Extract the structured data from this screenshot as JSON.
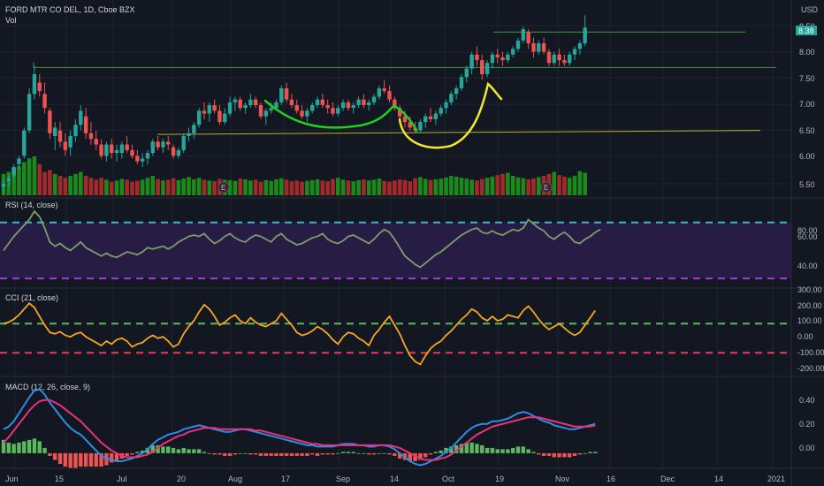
{
  "header": {
    "symbol": "FORD MTR CO DEL, 1D, Cboe BZX",
    "volume_label": "Vol",
    "currency": "USD"
  },
  "colors": {
    "background": "#131722",
    "grid": "#1f2330",
    "separator": "#2a2e39",
    "up": "#26a69a",
    "down": "#ef5350",
    "vol_up": "#1b8a1b",
    "vol_down": "#a32a2a",
    "rsi_line": "#7e9c6b",
    "rsi_band": "#2b1d4a",
    "rsi_upper": "#3bb8d8",
    "rsi_lower": "#a23bd8",
    "cci_line": "#f5a623",
    "cci_upper": "#5cb85c",
    "cci_lower": "#e83e5a",
    "macd_line": "#2e8be6",
    "signal_line": "#e8327a",
    "hist_up": "#5cb85c",
    "hist_down": "#ef5350",
    "drawing_green": "#1fd11f",
    "drawing_yellow": "#f2e92b",
    "hline_green": "#3e9a3e",
    "hline_yellow": "#b7b12c",
    "last_price_bg": "#26a69a"
  },
  "chart_data": {
    "type": "candlestick",
    "x_ticks": [
      "Jun",
      "15",
      "Jul",
      "20",
      "Aug",
      "17",
      "Sep",
      "14",
      "Oct",
      "19",
      "Nov",
      "16",
      "Dec",
      "14",
      "2021"
    ],
    "price_axis": {
      "ticks": [
        "8.50",
        "8.00",
        "7.50",
        "7.00",
        "6.50",
        "6.00",
        "5.50"
      ],
      "last_price": "8.38"
    },
    "price_candles": [
      [
        5.55,
        5.65,
        5.45,
        5.6
      ],
      [
        5.65,
        5.75,
        5.55,
        5.7
      ],
      [
        5.75,
        5.95,
        5.7,
        5.9
      ],
      [
        5.95,
        6.1,
        5.85,
        6.05
      ],
      [
        6.1,
        6.6,
        6.05,
        6.55
      ],
      [
        6.55,
        7.3,
        6.5,
        7.2
      ],
      [
        7.2,
        7.7,
        7.1,
        7.55
      ],
      [
        7.4,
        7.55,
        7.15,
        7.25
      ],
      [
        7.2,
        7.4,
        6.85,
        6.95
      ],
      [
        6.9,
        6.95,
        6.4,
        6.5
      ],
      [
        6.45,
        6.7,
        6.2,
        6.6
      ],
      [
        6.55,
        6.7,
        6.25,
        6.35
      ],
      [
        6.35,
        6.5,
        6.1,
        6.2
      ],
      [
        6.25,
        6.55,
        6.1,
        6.45
      ],
      [
        6.45,
        6.75,
        6.35,
        6.65
      ],
      [
        6.65,
        7.0,
        6.55,
        6.9
      ],
      [
        6.8,
        6.95,
        6.4,
        6.5
      ],
      [
        6.5,
        6.7,
        6.3,
        6.4
      ],
      [
        6.4,
        6.55,
        6.2,
        6.3
      ],
      [
        6.3,
        6.4,
        6.05,
        6.1
      ],
      [
        6.1,
        6.35,
        6.0,
        6.3
      ],
      [
        6.3,
        6.4,
        6.05,
        6.15
      ],
      [
        6.15,
        6.3,
        6.0,
        6.2
      ],
      [
        6.15,
        6.35,
        6.05,
        6.3
      ],
      [
        6.3,
        6.45,
        6.15,
        6.2
      ],
      [
        6.2,
        6.3,
        6.05,
        6.1
      ],
      [
        6.1,
        6.2,
        5.95,
        6.0
      ],
      [
        6.0,
        6.15,
        5.9,
        6.05
      ],
      [
        6.05,
        6.2,
        5.95,
        6.15
      ],
      [
        6.15,
        6.4,
        6.1,
        6.35
      ],
      [
        6.35,
        6.45,
        6.2,
        6.25
      ],
      [
        6.25,
        6.4,
        6.15,
        6.35
      ],
      [
        6.35,
        6.45,
        6.2,
        6.3
      ],
      [
        6.25,
        6.3,
        6.05,
        6.1
      ],
      [
        6.1,
        6.25,
        6.05,
        6.2
      ],
      [
        6.2,
        6.5,
        6.15,
        6.45
      ],
      [
        6.45,
        6.6,
        6.35,
        6.5
      ],
      [
        6.5,
        6.7,
        6.4,
        6.65
      ],
      [
        6.65,
        6.95,
        6.6,
        6.9
      ],
      [
        6.9,
        7.05,
        6.75,
        6.85
      ],
      [
        6.85,
        7.05,
        6.7,
        7.0
      ],
      [
        7.0,
        7.1,
        6.85,
        6.9
      ],
      [
        6.9,
        7.0,
        6.65,
        6.7
      ],
      [
        6.7,
        6.95,
        6.65,
        6.85
      ],
      [
        6.85,
        7.15,
        6.8,
        7.05
      ],
      [
        7.05,
        7.15,
        6.9,
        7.1
      ],
      [
        7.1,
        7.15,
        6.9,
        6.95
      ],
      [
        6.95,
        7.05,
        6.85,
        7.0
      ],
      [
        7.0,
        7.2,
        6.95,
        7.1
      ],
      [
        7.1,
        7.15,
        6.95,
        7.0
      ],
      [
        7.0,
        7.05,
        6.75,
        6.8
      ],
      [
        6.8,
        6.95,
        6.65,
        6.9
      ],
      [
        6.9,
        7.05,
        6.85,
        6.95
      ],
      [
        6.95,
        7.1,
        6.9,
        7.05
      ],
      [
        7.05,
        7.35,
        7.0,
        7.3
      ],
      [
        7.3,
        7.4,
        7.05,
        7.1
      ],
      [
        7.1,
        7.2,
        6.95,
        7.0
      ],
      [
        7.0,
        7.1,
        6.85,
        6.9
      ],
      [
        6.9,
        7.0,
        6.75,
        6.8
      ],
      [
        6.8,
        6.95,
        6.7,
        6.9
      ],
      [
        6.9,
        7.05,
        6.85,
        7.0
      ],
      [
        7.0,
        7.15,
        6.95,
        7.1
      ],
      [
        7.1,
        7.2,
        6.95,
        7.0
      ],
      [
        7.0,
        7.1,
        6.85,
        6.95
      ],
      [
        6.95,
        7.05,
        6.8,
        6.85
      ],
      [
        6.85,
        7.0,
        6.8,
        6.95
      ],
      [
        6.95,
        7.1,
        6.9,
        7.05
      ],
      [
        7.05,
        7.1,
        6.9,
        6.95
      ],
      [
        6.95,
        7.05,
        6.85,
        7.0
      ],
      [
        7.0,
        7.15,
        6.95,
        7.1
      ],
      [
        7.1,
        7.2,
        6.95,
        7.0
      ],
      [
        7.0,
        7.1,
        6.9,
        7.05
      ],
      [
        7.05,
        7.2,
        7.0,
        7.15
      ],
      [
        7.15,
        7.35,
        7.1,
        7.3
      ],
      [
        7.3,
        7.45,
        7.2,
        7.25
      ],
      [
        7.25,
        7.35,
        7.05,
        7.1
      ],
      [
        7.1,
        7.15,
        6.9,
        6.95
      ],
      [
        6.95,
        7.0,
        6.75,
        6.8
      ],
      [
        6.8,
        6.9,
        6.6,
        6.7
      ],
      [
        6.7,
        6.8,
        6.55,
        6.6
      ],
      [
        6.6,
        6.7,
        6.5,
        6.55
      ],
      [
        6.55,
        6.75,
        6.5,
        6.7
      ],
      [
        6.7,
        6.85,
        6.6,
        6.8
      ],
      [
        6.8,
        6.95,
        6.7,
        6.75
      ],
      [
        6.75,
        6.9,
        6.65,
        6.85
      ],
      [
        6.85,
        7.0,
        6.8,
        6.95
      ],
      [
        6.95,
        7.1,
        6.85,
        7.05
      ],
      [
        7.05,
        7.25,
        7.0,
        7.2
      ],
      [
        7.2,
        7.35,
        7.1,
        7.3
      ],
      [
        7.3,
        7.55,
        7.25,
        7.5
      ],
      [
        7.5,
        7.7,
        7.4,
        7.65
      ],
      [
        7.65,
        7.95,
        7.55,
        7.9
      ],
      [
        7.9,
        8.05,
        7.7,
        7.8
      ],
      [
        7.8,
        7.9,
        7.45,
        7.55
      ],
      [
        7.55,
        7.8,
        7.5,
        7.75
      ],
      [
        7.75,
        7.95,
        7.65,
        7.9
      ],
      [
        7.9,
        8.0,
        7.75,
        7.85
      ],
      [
        7.85,
        7.95,
        7.7,
        7.8
      ],
      [
        7.8,
        7.95,
        7.75,
        7.9
      ],
      [
        7.9,
        8.05,
        7.85,
        8.0
      ],
      [
        8.0,
        8.2,
        7.95,
        8.15
      ],
      [
        8.15,
        8.4,
        8.1,
        8.35
      ],
      [
        8.3,
        8.35,
        8.0,
        8.1
      ],
      [
        8.1,
        8.2,
        7.85,
        7.95
      ],
      [
        7.95,
        8.15,
        7.9,
        8.1
      ],
      [
        8.1,
        8.2,
        7.9,
        7.95
      ],
      [
        7.95,
        8.0,
        7.7,
        7.75
      ],
      [
        7.75,
        7.95,
        7.7,
        7.9
      ],
      [
        7.9,
        8.0,
        7.7,
        7.8
      ],
      [
        7.8,
        7.9,
        7.7,
        7.75
      ],
      [
        7.75,
        7.95,
        7.7,
        7.9
      ],
      [
        7.9,
        8.05,
        7.8,
        8.0
      ],
      [
        8.0,
        8.15,
        7.9,
        8.1
      ],
      [
        8.1,
        8.6,
        8.05,
        8.38
      ]
    ],
    "volumes": [
      0.55,
      0.6,
      0.7,
      0.75,
      0.85,
      0.95,
      1.0,
      0.8,
      0.6,
      0.65,
      0.55,
      0.5,
      0.45,
      0.5,
      0.55,
      0.6,
      0.5,
      0.45,
      0.4,
      0.45,
      0.4,
      0.35,
      0.38,
      0.42,
      0.4,
      0.35,
      0.37,
      0.4,
      0.45,
      0.5,
      0.42,
      0.38,
      0.4,
      0.44,
      0.39,
      0.43,
      0.47,
      0.41,
      0.45,
      0.4,
      0.38,
      0.36,
      0.42,
      0.4,
      0.39,
      0.37,
      0.43,
      0.41,
      0.38,
      0.4,
      0.35,
      0.39,
      0.37,
      0.41,
      0.44,
      0.4,
      0.36,
      0.38,
      0.35,
      0.37,
      0.39,
      0.41,
      0.38,
      0.36,
      0.42,
      0.45,
      0.4,
      0.38,
      0.36,
      0.39,
      0.41,
      0.38,
      0.4,
      0.43,
      0.37,
      0.35,
      0.38,
      0.41,
      0.39,
      0.36,
      0.44,
      0.47,
      0.42,
      0.39,
      0.41,
      0.43,
      0.46,
      0.5,
      0.48,
      0.45,
      0.43,
      0.4,
      0.38,
      0.42,
      0.45,
      0.48,
      0.52,
      0.55,
      0.58,
      0.5,
      0.46,
      0.44,
      0.41,
      0.43,
      0.47,
      0.5,
      0.55,
      0.6,
      0.52,
      0.48,
      0.45,
      0.5,
      0.62,
      0.58
    ],
    "rsi": {
      "label": "RSI (14, close)",
      "y_ticks": [
        "80.00",
        "60.00",
        "40.00"
      ],
      "upper": 70,
      "lower": 30,
      "ylim": [
        25,
        85
      ],
      "values": [
        50,
        55,
        60,
        64,
        68,
        72,
        78,
        74,
        66,
        56,
        53,
        55,
        52,
        50,
        53,
        56,
        52,
        50,
        48,
        46,
        48,
        46,
        45,
        47,
        49,
        48,
        47,
        49,
        52,
        51,
        52,
        53,
        51,
        53,
        56,
        58,
        60,
        61,
        60,
        62,
        58,
        55,
        57,
        60,
        62,
        59,
        57,
        56,
        59,
        61,
        60,
        58,
        56,
        60,
        62,
        58,
        56,
        54,
        55,
        57,
        59,
        60,
        62,
        58,
        56,
        55,
        57,
        60,
        61,
        59,
        57,
        55,
        58,
        62,
        65,
        63,
        58,
        52,
        46,
        43,
        40,
        38,
        41,
        44,
        47,
        49,
        52,
        55,
        58,
        61,
        63,
        65,
        66,
        63,
        62,
        64,
        62,
        61,
        63,
        65,
        64,
        66,
        72,
        69,
        66,
        64,
        60,
        58,
        61,
        63,
        60,
        56,
        55,
        58,
        60,
        63,
        65
      ]
    },
    "cci": {
      "label": "CCI (21, close)",
      "y_ticks": [
        "300.00",
        "200.00",
        "100.00",
        "0.00",
        "-100.00",
        "-200.00"
      ],
      "upper": 100,
      "lower": -100,
      "ylim": [
        -250,
        320
      ],
      "values": [
        100,
        110,
        130,
        160,
        200,
        240,
        210,
        150,
        90,
        40,
        30,
        45,
        20,
        10,
        30,
        40,
        10,
        -10,
        -30,
        -50,
        -20,
        -40,
        -10,
        0,
        -20,
        -60,
        -40,
        -30,
        0,
        20,
        0,
        10,
        -20,
        -60,
        -40,
        30,
        80,
        120,
        180,
        230,
        200,
        150,
        90,
        110,
        140,
        160,
        120,
        100,
        140,
        110,
        90,
        80,
        100,
        120,
        170,
        130,
        90,
        40,
        20,
        30,
        50,
        80,
        60,
        30,
        -10,
        -40,
        10,
        40,
        30,
        0,
        -20,
        -50,
        20,
        60,
        110,
        150,
        90,
        30,
        -50,
        -120,
        -160,
        -180,
        -120,
        -70,
        -40,
        -20,
        20,
        50,
        90,
        130,
        160,
        200,
        180,
        140,
        120,
        150,
        120,
        130,
        160,
        150,
        140,
        190,
        220,
        180,
        130,
        90,
        60,
        80,
        100,
        70,
        40,
        20,
        40,
        90,
        140,
        190
      ]
    },
    "macd": {
      "label": "MACD (12, 26, close, 9)",
      "y_ticks": [
        "0.40",
        "0.20",
        "0.00"
      ],
      "ylim": [
        -0.1,
        0.55
      ],
      "macd_values": [
        0.18,
        0.2,
        0.24,
        0.3,
        0.36,
        0.42,
        0.47,
        0.48,
        0.44,
        0.38,
        0.33,
        0.28,
        0.23,
        0.19,
        0.16,
        0.14,
        0.1,
        0.06,
        0.02,
        -0.02,
        -0.04,
        -0.05,
        -0.06,
        -0.06,
        -0.05,
        -0.04,
        -0.02,
        0.0,
        0.03,
        0.07,
        0.1,
        0.12,
        0.14,
        0.15,
        0.16,
        0.18,
        0.19,
        0.2,
        0.21,
        0.2,
        0.19,
        0.18,
        0.17,
        0.16,
        0.16,
        0.17,
        0.18,
        0.18,
        0.17,
        0.16,
        0.15,
        0.14,
        0.13,
        0.12,
        0.11,
        0.1,
        0.09,
        0.08,
        0.07,
        0.06,
        0.06,
        0.05,
        0.05,
        0.05,
        0.05,
        0.06,
        0.07,
        0.07,
        0.07,
        0.06,
        0.06,
        0.05,
        0.05,
        0.06,
        0.06,
        0.05,
        0.03,
        0.0,
        -0.03,
        -0.06,
        -0.08,
        -0.09,
        -0.08,
        -0.06,
        -0.04,
        -0.02,
        0.01,
        0.04,
        0.08,
        0.12,
        0.16,
        0.19,
        0.21,
        0.22,
        0.22,
        0.24,
        0.24,
        0.25,
        0.26,
        0.28,
        0.3,
        0.31,
        0.3,
        0.28,
        0.26,
        0.24,
        0.23,
        0.21,
        0.2,
        0.19,
        0.18,
        0.18,
        0.19,
        0.2,
        0.21,
        0.22
      ],
      "signal_values": [
        0.08,
        0.12,
        0.17,
        0.22,
        0.27,
        0.32,
        0.36,
        0.39,
        0.4,
        0.4,
        0.38,
        0.36,
        0.33,
        0.3,
        0.27,
        0.24,
        0.2,
        0.16,
        0.12,
        0.08,
        0.05,
        0.02,
        0.0,
        -0.02,
        -0.03,
        -0.03,
        -0.03,
        -0.02,
        -0.01,
        0.01,
        0.04,
        0.07,
        0.09,
        0.11,
        0.13,
        0.14,
        0.16,
        0.17,
        0.18,
        0.19,
        0.19,
        0.19,
        0.18,
        0.18,
        0.18,
        0.18,
        0.18,
        0.18,
        0.18,
        0.17,
        0.17,
        0.16,
        0.15,
        0.14,
        0.13,
        0.12,
        0.11,
        0.1,
        0.09,
        0.08,
        0.07,
        0.07,
        0.06,
        0.06,
        0.06,
        0.06,
        0.06,
        0.06,
        0.06,
        0.06,
        0.06,
        0.06,
        0.06,
        0.06,
        0.06,
        0.06,
        0.05,
        0.04,
        0.02,
        0.0,
        -0.02,
        -0.04,
        -0.05,
        -0.05,
        -0.05,
        -0.04,
        -0.03,
        -0.01,
        0.02,
        0.05,
        0.08,
        0.11,
        0.14,
        0.16,
        0.18,
        0.2,
        0.21,
        0.22,
        0.23,
        0.24,
        0.25,
        0.26,
        0.27,
        0.27,
        0.27,
        0.26,
        0.25,
        0.24,
        0.23,
        0.22,
        0.21,
        0.2,
        0.2,
        0.2,
        0.2,
        0.21
      ]
    }
  },
  "markers": [
    "E",
    "E"
  ],
  "tick_labels": {
    "jun": "Jun",
    "d15a": "15",
    "jul": "Jul",
    "d20": "20",
    "aug": "Aug",
    "d17": "17",
    "sep": "Sep",
    "d14a": "14",
    "oct": "Oct",
    "d19": "19",
    "nov": "Nov",
    "d16": "16",
    "dec": "Dec",
    "d14b": "14",
    "y2021": "2021"
  }
}
